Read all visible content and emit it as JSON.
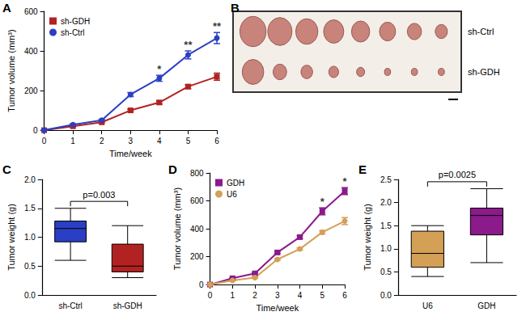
{
  "chart_data": [
    {
      "panel": "A",
      "type": "line",
      "x": [
        0,
        1,
        2,
        3,
        4,
        5,
        6
      ],
      "xlim": [
        0,
        6
      ],
      "xticks": [
        0,
        1,
        2,
        3,
        4,
        5,
        6
      ],
      "ylim": [
        0,
        600
      ],
      "yticks": [
        0,
        200,
        400,
        600
      ],
      "x_label": "Time/week",
      "y_label": "Tumor volume (mm³)",
      "grid": false,
      "legend": "upper left",
      "series": [
        {
          "name": "sh-GDH",
          "color": "#b22222",
          "marker": "square",
          "values": [
            0,
            20,
            40,
            100,
            140,
            220,
            270
          ],
          "errors": [
            0,
            3,
            4,
            6,
            8,
            10,
            18
          ]
        },
        {
          "name": "sh-Ctrl",
          "color": "#2b3fc4",
          "marker": "circle",
          "values": [
            0,
            28,
            50,
            180,
            262,
            380,
            465
          ],
          "errors": [
            0,
            4,
            5,
            10,
            15,
            20,
            28
          ]
        }
      ],
      "annotations": [
        {
          "x": 4,
          "text": "*"
        },
        {
          "x": 5,
          "text": "**"
        },
        {
          "x": 6,
          "text": "**"
        }
      ]
    },
    {
      "panel": "B",
      "type": "photo",
      "rows": [
        "sh-Ctrl",
        "sh-GDH"
      ],
      "tumors": [
        8,
        8
      ]
    },
    {
      "panel": "C",
      "type": "box",
      "categories": [
        "sh-Ctrl",
        "sh-GDH"
      ],
      "colors": [
        "#2b3fc4",
        "#b22222"
      ],
      "boxes": [
        {
          "min": 0.6,
          "q1": 0.92,
          "median": 1.15,
          "q3": 1.28,
          "max": 1.5
        },
        {
          "min": 0.3,
          "q1": 0.4,
          "median": 0.5,
          "q3": 0.88,
          "max": 1.2
        }
      ],
      "ylim": [
        0,
        2
      ],
      "yticks": [
        {
          "value": 0,
          "label": "0.0"
        },
        {
          "value": 0.5,
          "label": "0.5"
        },
        {
          "value": 1,
          "label": "1.0"
        },
        {
          "value": 1.5,
          "label": "1.5"
        },
        {
          "value": 2,
          "label": "2.0"
        }
      ],
      "y_label": "Tumor weight (g)",
      "grid": false,
      "annotations": [
        {
          "text": "p=0.003"
        }
      ]
    },
    {
      "panel": "D",
      "type": "line",
      "x": [
        0,
        1,
        2,
        3,
        4,
        5,
        6
      ],
      "xlim": [
        0,
        6
      ],
      "xticks": [
        0,
        1,
        2,
        3,
        4,
        5,
        6
      ],
      "ylim": [
        0,
        800
      ],
      "yticks": [
        0,
        200,
        400,
        600,
        800
      ],
      "x_label": "Time/week",
      "y_label": "Tumor volume (mm³)",
      "grid": false,
      "legend": "upper left",
      "series": [
        {
          "name": "GDH",
          "color": "#8b1a8b",
          "marker": "square",
          "values": [
            0,
            45,
            80,
            230,
            340,
            525,
            670
          ],
          "errors": [
            0,
            4,
            6,
            8,
            10,
            25,
            25
          ]
        },
        {
          "name": "U6",
          "color": "#d4a056",
          "marker": "circle",
          "values": [
            0,
            30,
            50,
            180,
            255,
            375,
            455
          ],
          "errors": [
            0,
            3,
            4,
            6,
            8,
            12,
            25
          ]
        }
      ],
      "annotations": [
        {
          "x": 5,
          "text": "*"
        },
        {
          "x": 6,
          "text": "*"
        }
      ]
    },
    {
      "panel": "E",
      "type": "box",
      "categories": [
        "U6",
        "GDH"
      ],
      "colors": [
        "#d4a056",
        "#8b1a8b"
      ],
      "boxes": [
        {
          "min": 0.4,
          "q1": 0.6,
          "median": 0.9,
          "q3": 1.38,
          "max": 1.5
        },
        {
          "min": 0.7,
          "q1": 1.3,
          "median": 1.72,
          "q3": 1.88,
          "max": 2.3
        }
      ],
      "ylim": [
        0,
        2.5
      ],
      "yticks": [
        {
          "value": 0,
          "label": "0.0"
        },
        {
          "value": 0.5,
          "label": "0.5"
        },
        {
          "value": 1,
          "label": "1.0"
        },
        {
          "value": 1.5,
          "label": "1.5"
        },
        {
          "value": 2,
          "label": "2.0"
        },
        {
          "value": 2.5,
          "label": "2.5"
        }
      ],
      "y_label": "Tumor weight (g)",
      "grid": false,
      "annotations": [
        {
          "text": "p=0.0025"
        }
      ]
    }
  ]
}
